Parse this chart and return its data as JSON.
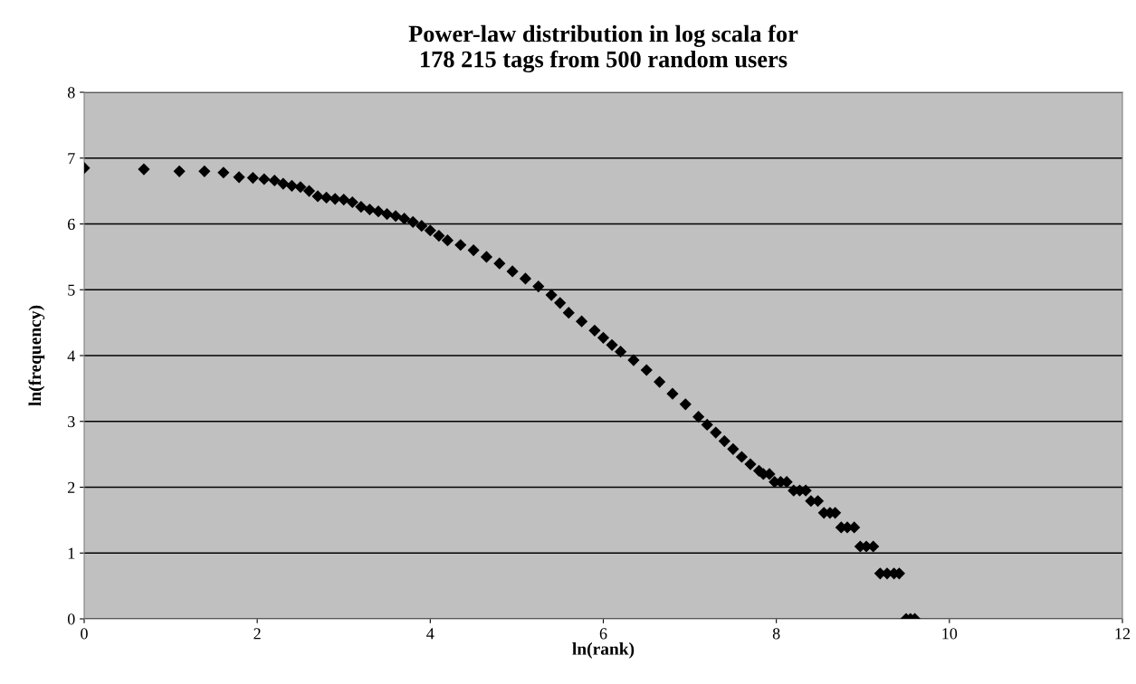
{
  "chart_data": {
    "type": "scatter",
    "title": "Power-law distribution in log scala for\n178 215 tags from 500 random users",
    "xlabel": "ln(rank)",
    "ylabel": "ln(frequency)",
    "x": [
      0,
      0.69,
      1.1,
      1.39,
      1.61,
      1.79,
      1.95,
      2.08,
      2.2,
      2.3,
      2.4,
      2.5,
      2.6,
      2.7,
      2.8,
      2.9,
      3.0,
      3.1,
      3.2,
      3.3,
      3.4,
      3.5,
      3.6,
      3.7,
      3.8,
      3.9,
      4.0,
      4.1,
      4.2,
      4.35,
      4.5,
      4.65,
      4.8,
      4.95,
      5.1,
      5.25,
      5.4,
      5.5,
      5.6,
      5.75,
      5.9,
      6.0,
      6.1,
      6.2,
      6.35,
      6.5,
      6.65,
      6.8,
      6.95,
      7.1,
      7.2,
      7.3,
      7.4,
      7.5,
      7.6,
      7.7,
      7.8,
      7.85,
      7.92,
      7.98,
      8.05,
      8.12,
      8.2,
      8.27,
      8.34,
      8.4,
      8.48,
      8.55,
      8.62,
      8.68,
      8.75,
      8.82,
      8.9,
      8.97,
      9.04,
      9.12,
      9.2,
      9.28,
      9.36,
      9.42,
      9.5,
      9.55,
      9.6
    ],
    "values": [
      6.85,
      6.83,
      6.8,
      6.8,
      6.78,
      6.71,
      6.7,
      6.68,
      6.66,
      6.61,
      6.58,
      6.56,
      6.5,
      6.42,
      6.4,
      6.38,
      6.37,
      6.33,
      6.26,
      6.22,
      6.19,
      6.15,
      6.12,
      6.08,
      6.03,
      5.97,
      5.9,
      5.82,
      5.75,
      5.68,
      5.6,
      5.5,
      5.4,
      5.28,
      5.17,
      5.05,
      4.92,
      4.8,
      4.65,
      4.52,
      4.38,
      4.27,
      4.16,
      4.06,
      3.93,
      3.78,
      3.6,
      3.42,
      3.26,
      3.07,
      2.95,
      2.83,
      2.7,
      2.58,
      2.46,
      2.35,
      2.25,
      2.2,
      2.2,
      2.08,
      2.08,
      2.08,
      1.95,
      1.95,
      1.95,
      1.79,
      1.79,
      1.61,
      1.61,
      1.61,
      1.39,
      1.39,
      1.39,
      1.1,
      1.1,
      1.1,
      0.69,
      0.69,
      0.69,
      0.69,
      0,
      0,
      0
    ],
    "color": "#000000",
    "marker": "diamond",
    "xlim": [
      0,
      12
    ],
    "xticks": [
      0,
      2,
      4,
      6,
      8,
      10,
      12
    ],
    "ylim": [
      0,
      8
    ],
    "yticks": [
      0,
      1,
      2,
      3,
      4,
      5,
      6,
      7,
      8
    ],
    "grid": "y",
    "legend": false
  }
}
